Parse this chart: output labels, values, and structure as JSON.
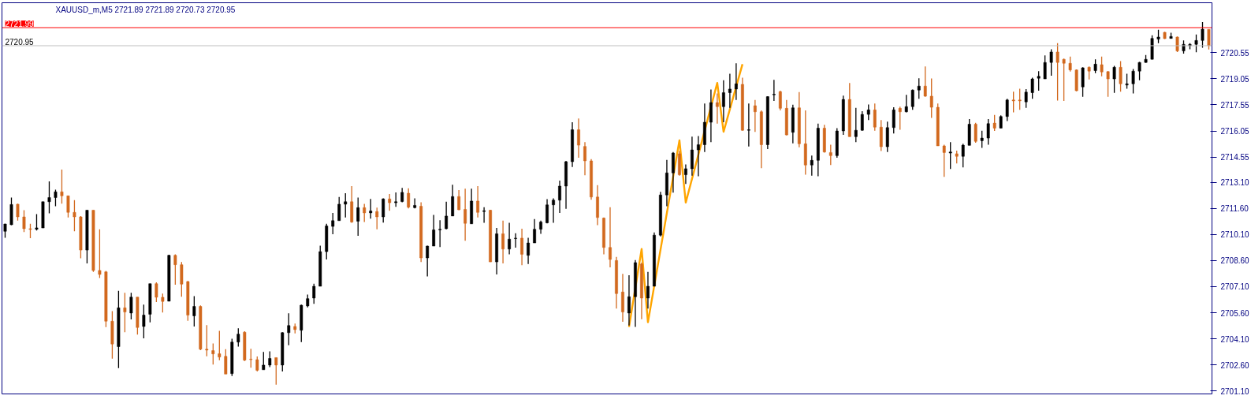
{
  "chart_data": {
    "type": "candlestick",
    "title": "XAUUSD_m,M5  2721.89 2721.89 2720.73 2720.95",
    "categories": [
      null,
      null,
      null,
      null,
      null,
      null,
      null,
      null,
      null,
      null,
      null,
      null,
      null,
      null,
      null,
      null,
      null,
      null,
      null,
      null,
      null,
      null,
      null,
      null,
      null,
      null,
      null,
      null,
      null,
      null,
      null,
      null,
      null,
      null,
      null,
      null,
      null,
      null,
      null,
      null,
      null,
      null,
      null,
      null,
      null,
      null,
      null,
      null,
      null,
      null,
      null,
      null,
      null,
      null,
      null,
      null,
      null,
      null,
      null,
      null,
      null,
      null,
      null,
      null,
      null,
      null,
      null,
      null,
      null,
      null,
      null,
      null,
      null,
      null,
      null,
      null,
      null,
      null,
      null,
      null,
      null,
      null,
      null,
      null,
      null,
      null,
      null,
      null,
      null,
      null,
      null,
      null,
      null,
      null,
      null,
      null,
      null,
      null,
      null,
      null,
      null,
      null,
      null,
      null,
      null,
      null,
      null,
      null,
      null,
      null,
      null,
      null,
      null,
      null,
      null,
      null,
      null,
      null,
      null,
      null,
      null,
      null,
      null,
      null,
      null,
      null,
      null,
      null,
      null,
      null,
      null,
      null,
      null,
      null,
      null,
      null,
      null,
      null,
      null,
      null,
      null,
      null,
      null,
      null,
      null,
      null,
      null,
      null,
      null,
      null,
      null,
      null,
      null,
      null,
      null,
      null,
      null,
      null,
      null,
      null,
      null,
      null,
      null,
      null,
      null,
      null,
      null,
      null,
      null,
      null,
      null,
      null,
      null,
      null,
      null,
      null,
      null,
      null,
      null,
      null,
      null,
      null,
      null,
      null,
      null,
      null,
      null,
      null,
      null,
      null,
      null,
      null
    ],
    "ylim": [
      2700.93,
      2723.42
    ],
    "yticks": [
      2720.55,
      2719.05,
      2717.55,
      2716.05,
      2714.55,
      {
        "value": 2713.1,
        "label": "2713.10"
      },
      {
        "value": 2711.6,
        "label": "2711.60"
      },
      {
        "value": 2710.1,
        "label": "2710.10"
      },
      {
        "value": 2708.6,
        "label": "2708.60"
      },
      {
        "value": 2707.1,
        "label": "2707.10"
      },
      {
        "value": 2705.6,
        "label": "2705.60"
      },
      {
        "value": 2704.1,
        "label": "2704.10"
      },
      {
        "value": 2702.6,
        "label": "2702.60"
      },
      {
        "value": 2701.1,
        "label": "2701.10"
      }
    ],
    "ref_lines": [
      {
        "axis": "y",
        "value": 2721.99,
        "label": "2721.99",
        "color": "#ff0000"
      },
      {
        "axis": "y",
        "value": 2720.95,
        "label": "2720.95",
        "color": "#c0c0c0"
      }
    ],
    "series": [
      {
        "colors": [
          "#000000",
          "#000000",
          "#d2691e",
          "#d2691e",
          "#d2691e",
          "#000000",
          "#000000",
          "#000000",
          "#000000",
          "#d2691e",
          "#d2691e",
          "#d2691e",
          "#d2691e",
          "#000000",
          "#d2691e",
          "#d2691e",
          "#d2691e",
          "#d2691e",
          "#000000",
          "#d2691e",
          "#000000",
          "#d2691e",
          "#000000",
          "#000000",
          "#d2691e",
          "#d2691e",
          "#000000",
          "#d2691e",
          "#d2691e",
          "#d2691e",
          "#000000",
          "#d2691e",
          "#d2691e",
          "#d2691e",
          "#d2691e",
          "#d2691e",
          "#000000",
          "#000000",
          "#d2691e",
          "#d2691e",
          "#d2691e",
          "#000000",
          "#000000",
          "#d2691e",
          "#000000",
          "#000000",
          "#d2691e",
          "#000000",
          "#000000",
          "#000000",
          "#000000",
          "#000000",
          "#000000",
          "#000000",
          "#000000",
          "#d2691e",
          "#000000",
          "#d2691e",
          "#000000",
          "#d2691e",
          "#000000",
          "#d2691e",
          "#000000",
          "#000000",
          "#d2691e",
          "#000000",
          "#d2691e",
          "#000000",
          "#000000",
          "#000000",
          "#000000",
          "#000000",
          "#d2691e",
          "#d2691e",
          "#000000",
          "#d2691e",
          "#000000",
          "#d2691e",
          "#000000",
          "#d2691e",
          "#000000",
          "#000000",
          "#d2691e",
          "#000000",
          "#000000",
          "#000000",
          "#000000",
          "#000000",
          "#000000",
          "#000000",
          "#000000",
          "#d2691e",
          "#d2691e",
          "#d2691e",
          "#d2691e",
          "#d2691e",
          "#d2691e",
          "#d2691e",
          "#d2691e",
          "#000000",
          "#000000",
          "#d2691e",
          "#000000",
          "#000000",
          "#000000",
          "#000000",
          "#000000",
          "#d2691e",
          "#000000",
          "#000000",
          "#000000",
          "#000000",
          "#000000",
          "#d2691e",
          "#000000",
          "#000000",
          "#000000",
          "#d2691e",
          "#000000",
          "#d2691e",
          "#d2691e",
          "#000000",
          "#000000",
          "#d2691e",
          "#d2691e",
          "#000000",
          "#d2691e",
          "#d2691e",
          "#000000",
          "#000000",
          "#d2691e",
          "#d2691e",
          "#000000",
          "#000000",
          "#d2691e",
          "#000000",
          "#000000",
          "#000000",
          "#d2691e",
          "#d2691e",
          "#000000",
          "#000000",
          "#d2691e",
          "#000000",
          "#000000",
          "#000000",
          "#d2691e",
          "#d2691e",
          "#d2691e",
          "#d2691e",
          "#000000",
          "#d2691e",
          "#000000",
          "#000000",
          "#d2691e",
          "#000000",
          "#000000",
          "#d2691e",
          "#000000",
          "#000000",
          "#d2691e",
          "#d2691e",
          "#000000",
          "#000000",
          "#000000",
          "#000000",
          "#000000",
          "#d2691e",
          "#d2691e",
          "#d2691e",
          "#d2691e",
          "#000000",
          "#d2691e",
          "#000000",
          "#d2691e",
          "#d2691e",
          "#000000",
          "#d2691e",
          "#000000",
          "#000000",
          "#000000",
          "#000000",
          "#000000",
          "#000000",
          "#d2691e",
          "#000000",
          "#d2691e",
          "#000000",
          "#000000",
          "#000000",
          "#000000",
          "#d2691e"
        ],
        "ohlc": [
          [
            2710.28,
            2710.71,
            2709.91,
            2710.7
          ],
          [
            2710.66,
            2712.22,
            2710.63,
            2711.82
          ],
          [
            2711.84,
            2711.87,
            2710.89,
            2711.11
          ],
          [
            2711.11,
            2711.49,
            2710.24,
            2710.43
          ],
          [
            2710.43,
            2710.71,
            2709.88,
            2710.39
          ],
          [
            2710.4,
            2711.27,
            2710.33,
            2710.48
          ],
          [
            2710.47,
            2711.98,
            2710.47,
            2711.98
          ],
          [
            2711.98,
            2713.15,
            2711.31,
            2712.22
          ],
          [
            2712.22,
            2712.67,
            2711.72,
            2712.55
          ],
          [
            2712.55,
            2713.83,
            2711.87,
            2712.32
          ],
          [
            2712.32,
            2712.32,
            2711.08,
            2711.37
          ],
          [
            2711.37,
            2712.07,
            2710.28,
            2711.11
          ],
          [
            2711.11,
            2711.16,
            2708.73,
            2709.2
          ],
          [
            2709.2,
            2711.49,
            2708.43,
            2711.49
          ],
          [
            2711.49,
            2711.49,
            2707.95,
            2708.03
          ],
          [
            2708.03,
            2710.39,
            2707.6,
            2707.8
          ],
          [
            2707.95,
            2708.0,
            2704.77,
            2705.11
          ],
          [
            2705.11,
            2705.69,
            2702.96,
            2703.8
          ],
          [
            2703.65,
            2706.86,
            2702.41,
            2705.88
          ],
          [
            2705.88,
            2706.74,
            2704.48,
            2705.64
          ],
          [
            2705.58,
            2706.74,
            2705.22,
            2706.5
          ],
          [
            2706.5,
            2706.5,
            2704.34,
            2704.75
          ],
          [
            2704.81,
            2706.06,
            2704.13,
            2705.46
          ],
          [
            2705.51,
            2707.27,
            2705.04,
            2707.27
          ],
          [
            2707.27,
            2707.35,
            2706.21,
            2706.49
          ],
          [
            2706.49,
            2706.7,
            2705.61,
            2706.25
          ],
          [
            2706.26,
            2708.93,
            2706.26,
            2708.9
          ],
          [
            2708.9,
            2708.96,
            2707.21,
            2708.36
          ],
          [
            2708.36,
            2708.51,
            2706.52,
            2707.24
          ],
          [
            2707.39,
            2707.42,
            2705.13,
            2705.46
          ],
          [
            2705.42,
            2706.55,
            2704.81,
            2705.96
          ],
          [
            2705.96,
            2706.02,
            2703.45,
            2703.5
          ],
          [
            2703.5,
            2704.89,
            2703.09,
            2703.45
          ],
          [
            2703.42,
            2703.83,
            2702.62,
            2703.23
          ],
          [
            2703.24,
            2704.56,
            2702.87,
            2703.05
          ],
          [
            2703.09,
            2703.5,
            2702.07,
            2702.07
          ],
          [
            2702.1,
            2704.1,
            2701.96,
            2703.91
          ],
          [
            2703.91,
            2704.71,
            2703.65,
            2704.37
          ],
          [
            2704.48,
            2704.53,
            2702.82,
            2702.87
          ],
          [
            2702.93,
            2703.53,
            2702.44,
            2702.9
          ],
          [
            2702.9,
            2703.08,
            2702.22,
            2702.29
          ],
          [
            2702.32,
            2703.35,
            2702.32,
            2702.59
          ],
          [
            2702.59,
            2703.38,
            2702.47,
            2702.97
          ],
          [
            2703.02,
            2703.02,
            2701.46,
            2702.59
          ],
          [
            2702.59,
            2704.48,
            2702.22,
            2704.45
          ],
          [
            2704.45,
            2705.57,
            2703.73,
            2704.86
          ],
          [
            2704.81,
            2704.98,
            2704.41,
            2704.63
          ],
          [
            2704.59,
            2706.06,
            2703.91,
            2706.03
          ],
          [
            2705.99,
            2706.64,
            2705.91,
            2706.41
          ],
          [
            2706.44,
            2707.27,
            2706.11,
            2707.12
          ],
          [
            2707.12,
            2709.46,
            2707.12,
            2709.11
          ],
          [
            2709.11,
            2710.71,
            2708.66,
            2710.59
          ],
          [
            2710.56,
            2711.34,
            2710.11,
            2710.89
          ],
          [
            2710.89,
            2712.25,
            2710.89,
            2711.84
          ],
          [
            2711.84,
            2712.47,
            2711.08,
            2711.98
          ],
          [
            2711.98,
            2712.88,
            2710.77,
            2710.81
          ],
          [
            2710.86,
            2712.22,
            2710.02,
            2711.64
          ],
          [
            2711.64,
            2711.86,
            2710.81,
            2711.34
          ],
          [
            2711.34,
            2712.14,
            2711.01,
            2711.45
          ],
          [
            2711.42,
            2711.64,
            2710.4,
            2711.11
          ],
          [
            2711.11,
            2712.17,
            2710.78,
            2712.14
          ],
          [
            2712.14,
            2712.43,
            2711.46,
            2711.92
          ],
          [
            2711.92,
            2712.52,
            2711.69,
            2711.98
          ],
          [
            2711.99,
            2712.78,
            2711.95,
            2712.52
          ],
          [
            2712.47,
            2712.75,
            2711.6,
            2711.67
          ],
          [
            2711.64,
            2712.17,
            2711.6,
            2711.77
          ],
          [
            2711.72,
            2711.95,
            2708.51,
            2708.75
          ],
          [
            2708.75,
            2709.46,
            2707.69,
            2709.43
          ],
          [
            2709.43,
            2711.22,
            2709.43,
            2710.36
          ],
          [
            2710.36,
            2710.92,
            2709.38,
            2710.4
          ],
          [
            2710.43,
            2711.98,
            2710.4,
            2711.16
          ],
          [
            2711.16,
            2712.96,
            2711.16,
            2712.28
          ],
          [
            2712.28,
            2712.65,
            2711.49,
            2711.52
          ],
          [
            2711.54,
            2712.73,
            2709.74,
            2710.74
          ],
          [
            2710.71,
            2712.73,
            2710.7,
            2712.02
          ],
          [
            2712.02,
            2712.88,
            2711.08,
            2711.37
          ],
          [
            2711.42,
            2711.67,
            2710.77,
            2711.46
          ],
          [
            2711.49,
            2711.52,
            2708.51,
            2708.52
          ],
          [
            2708.52,
            2710.47,
            2707.8,
            2710.14
          ],
          [
            2710.14,
            2710.89,
            2708.43,
            2709.26
          ],
          [
            2709.26,
            2710.77,
            2708.96,
            2709.83
          ],
          [
            2709.86,
            2710.17,
            2709.34,
            2709.89
          ],
          [
            2709.89,
            2710.43,
            2708.33,
            2708.96
          ],
          [
            2708.9,
            2709.91,
            2708.4,
            2709.61
          ],
          [
            2709.61,
            2710.99,
            2709.61,
            2710.4
          ],
          [
            2710.4,
            2710.89,
            2710.14,
            2710.81
          ],
          [
            2710.77,
            2712.13,
            2710.74,
            2711.8
          ],
          [
            2711.8,
            2712.17,
            2710.77,
            2712.07
          ],
          [
            2712.07,
            2713.2,
            2711.34,
            2712.88
          ],
          [
            2712.88,
            2714.33,
            2711.57,
            2714.28
          ],
          [
            2714.28,
            2716.55,
            2713.98,
            2716.12
          ],
          [
            2716.12,
            2716.77,
            2714.51,
            2715.23
          ],
          [
            2715.16,
            2715.41,
            2713.5,
            2714.33
          ],
          [
            2714.33,
            2714.43,
            2712.1,
            2712.25
          ],
          [
            2712.25,
            2712.93,
            2710.63,
            2711.07
          ],
          [
            2711.04,
            2711.07,
            2708.96,
            2709.35
          ],
          [
            2709.35,
            2711.67,
            2708.21,
            2708.66
          ],
          [
            2708.6,
            2708.81,
            2705.84,
            2706.7
          ],
          [
            2706.79,
            2707.83,
            2705.08,
            2705.64
          ],
          [
            2705.58,
            2707.75,
            2704.86,
            2706.52
          ],
          [
            2706.52,
            2708.63,
            2704.78,
            2708.48
          ],
          [
            2708.4,
            2708.48,
            2705.23,
            2706.44
          ],
          [
            2706.44,
            2707.95,
            2705.84,
            2707.12
          ],
          [
            2707.12,
            2710.21,
            2707.12,
            2710.06
          ],
          [
            2710.06,
            2712.55,
            2709.99,
            2712.37
          ],
          [
            2712.37,
            2714.39,
            2711.72,
            2713.64
          ],
          [
            2713.64,
            2714.84,
            2712.5,
            2714.78
          ],
          [
            2714.74,
            2714.89,
            2713.48,
            2713.53
          ],
          [
            2713.53,
            2714.13,
            2713.0,
            2713.88
          ],
          [
            2713.88,
            2715.72,
            2713.48,
            2714.96
          ],
          [
            2714.96,
            2715.76,
            2713.45,
            2715.26
          ],
          [
            2715.26,
            2717.63,
            2714.84,
            2716.55
          ],
          [
            2716.55,
            2718.43,
            2715.41,
            2717.68
          ],
          [
            2717.68,
            2718.21,
            2716.47,
            2717.45
          ],
          [
            2717.45,
            2718.96,
            2716.55,
            2718.25
          ],
          [
            2718.25,
            2719.34,
            2717.38,
            2718.46
          ],
          [
            2718.46,
            2719.94,
            2717.83,
            2718.76
          ],
          [
            2718.73,
            2719.11,
            2716.06,
            2716.09
          ],
          [
            2716.09,
            2717.63,
            2715.16,
            2716.12
          ],
          [
            2717.5,
            2717.83,
            2715.99,
            2717.15
          ],
          [
            2717.15,
            2717.23,
            2713.91,
            2715.26
          ],
          [
            2715.26,
            2718.05,
            2715.01,
            2718.02
          ],
          [
            2718.13,
            2718.99,
            2717.78,
            2718.16
          ],
          [
            2718.31,
            2718.36,
            2717.23,
            2717.35
          ],
          [
            2717.35,
            2717.83,
            2715.79,
            2715.82
          ],
          [
            2715.97,
            2717.56,
            2715.34,
            2717.38
          ],
          [
            2717.38,
            2718.28,
            2715.11,
            2715.31
          ],
          [
            2715.31,
            2717.23,
            2713.53,
            2714.09
          ],
          [
            2714.09,
            2714.63,
            2713.48,
            2714.36
          ],
          [
            2714.36,
            2716.47,
            2713.45,
            2716.21
          ],
          [
            2716.21,
            2716.4,
            2714.81,
            2714.84
          ],
          [
            2714.81,
            2715.26,
            2714.09,
            2714.63
          ],
          [
            2714.63,
            2716.21,
            2714.51,
            2716.05
          ],
          [
            2716.05,
            2718.08,
            2715.82,
            2717.86
          ],
          [
            2717.86,
            2718.81,
            2715.72,
            2715.72
          ],
          [
            2715.72,
            2717.38,
            2715.41,
            2716.09
          ],
          [
            2716.09,
            2717.18,
            2716.06,
            2717.0
          ],
          [
            2717.0,
            2717.57,
            2716.67,
            2717.26
          ],
          [
            2717.26,
            2717.63,
            2716.06,
            2716.27
          ],
          [
            2716.27,
            2716.67,
            2714.89,
            2715.14
          ],
          [
            2715.14,
            2716.59,
            2714.84,
            2716.24
          ],
          [
            2716.24,
            2717.41,
            2715.9,
            2717.26
          ],
          [
            2717.35,
            2717.45,
            2716.12,
            2717.15
          ],
          [
            2717.15,
            2718.13,
            2717.12,
            2717.45
          ],
          [
            2717.45,
            2718.43,
            2717.26,
            2718.4
          ],
          [
            2718.4,
            2719.08,
            2717.9,
            2718.63
          ],
          [
            2718.63,
            2719.76,
            2718.01,
            2718.05
          ],
          [
            2718.05,
            2719.07,
            2716.8,
            2717.41
          ],
          [
            2717.41,
            2717.63,
            2715.19,
            2715.19
          ],
          [
            2715.19,
            2715.26,
            2713.41,
            2714.81
          ],
          [
            2714.78,
            2715.41,
            2713.86,
            2714.84
          ],
          [
            2714.74,
            2714.92,
            2714.18,
            2714.59
          ],
          [
            2714.59,
            2715.31,
            2713.95,
            2715.23
          ],
          [
            2715.22,
            2716.73,
            2715.22,
            2716.44
          ],
          [
            2716.44,
            2716.52,
            2715.37,
            2715.45
          ],
          [
            2715.49,
            2716.06,
            2715.08,
            2715.64
          ],
          [
            2715.64,
            2716.73,
            2715.26,
            2716.47
          ],
          [
            2716.5,
            2716.97,
            2716.05,
            2716.21
          ],
          [
            2716.21,
            2716.95,
            2716.21,
            2716.88
          ],
          [
            2716.88,
            2717.9,
            2716.62,
            2717.83
          ],
          [
            2717.83,
            2718.31,
            2717.12,
            2717.78
          ],
          [
            2717.83,
            2718.48,
            2717.26,
            2717.78
          ],
          [
            2717.72,
            2718.46,
            2717.38,
            2718.28
          ],
          [
            2718.25,
            2719.11,
            2717.9,
            2719.04
          ],
          [
            2719.08,
            2719.49,
            2718.36,
            2719.19
          ],
          [
            2719.04,
            2720.39,
            2719.04,
            2719.99
          ],
          [
            2719.99,
            2720.74,
            2719.23,
            2720.59
          ],
          [
            2720.59,
            2721.1,
            2717.8,
            2719.99
          ],
          [
            2720.17,
            2720.21,
            2717.78,
            2719.94
          ],
          [
            2719.94,
            2720.32,
            2719.46,
            2719.56
          ],
          [
            2719.56,
            2719.59,
            2718.33,
            2718.36
          ],
          [
            2718.58,
            2719.71,
            2718.01,
            2719.68
          ],
          [
            2719.71,
            2719.76,
            2719.01,
            2719.49
          ],
          [
            2719.52,
            2720.17,
            2719.37,
            2719.89
          ],
          [
            2719.86,
            2720.32,
            2719.19,
            2719.44
          ],
          [
            2719.46,
            2719.49,
            2718.01,
            2719.04
          ],
          [
            2719.04,
            2719.79,
            2718.24,
            2719.71
          ],
          [
            2719.71,
            2720.06,
            2718.31,
            2718.76
          ],
          [
            2718.69,
            2719.34,
            2718.48,
            2718.76
          ],
          [
            2718.76,
            2719.61,
            2718.21,
            2719.49
          ],
          [
            2719.49,
            2720.02,
            2718.96,
            2719.99
          ],
          [
            2719.99,
            2720.42,
            2719.97,
            2720.17
          ],
          [
            2720.17,
            2721.55,
            2720.17,
            2721.37
          ],
          [
            2721.33,
            2721.87,
            2721.1,
            2721.45
          ],
          [
            2721.72,
            2721.75,
            2721.33,
            2721.36
          ],
          [
            2721.37,
            2721.7,
            2721.37,
            2721.48
          ],
          [
            2721.45,
            2721.48,
            2720.59,
            2720.65
          ],
          [
            2720.65,
            2721.25,
            2720.5,
            2721.03
          ],
          [
            2720.95,
            2721.1,
            2720.74,
            2721.03
          ],
          [
            2721.03,
            2721.6,
            2720.57,
            2721.25
          ],
          [
            2721.25,
            2722.31,
            2720.84,
            2721.9
          ],
          [
            2721.89,
            2721.89,
            2720.73,
            2720.95
          ]
        ]
      },
      {
        "type": "line",
        "color": "#ffa500",
        "values": [
          null,
          null,
          null,
          null,
          null,
          null,
          null,
          null,
          null,
          null,
          null,
          null,
          null,
          null,
          null,
          null,
          null,
          null,
          null,
          null,
          null,
          null,
          null,
          null,
          null,
          null,
          null,
          null,
          null,
          null,
          null,
          null,
          null,
          null,
          null,
          null,
          null,
          null,
          null,
          null,
          null,
          null,
          null,
          null,
          null,
          null,
          null,
          null,
          null,
          null,
          null,
          null,
          null,
          null,
          null,
          null,
          null,
          null,
          null,
          null,
          null,
          null,
          null,
          null,
          null,
          null,
          null,
          null,
          null,
          null,
          null,
          null,
          null,
          null,
          null,
          null,
          null,
          null,
          null,
          null,
          null,
          null,
          null,
          null,
          null,
          null,
          null,
          null,
          null,
          null,
          null,
          null,
          null,
          null,
          null,
          null,
          null,
          null,
          null,
          2704.78,
          null,
          2709.26,
          2705.05,
          null,
          null,
          null,
          null,
          2715.51,
          2711.93,
          null,
          null,
          null,
          null,
          2718.81,
          2716.0,
          null,
          null,
          2719.89,
          null,
          null,
          null,
          null,
          null,
          null,
          null,
          null,
          null,
          null,
          null,
          null,
          null,
          null,
          null,
          null,
          null,
          null,
          null,
          null,
          null,
          null,
          null,
          null,
          null,
          null,
          null,
          null,
          null,
          null,
          null,
          null,
          null,
          null,
          null,
          null,
          null,
          null,
          null,
          null,
          null,
          null,
          null,
          null,
          null,
          null,
          null,
          null,
          null,
          null,
          null,
          null,
          null,
          null,
          null,
          null,
          null,
          null,
          null,
          null,
          null,
          null,
          null,
          null,
          null,
          null,
          null,
          null,
          null,
          null,
          null,
          null,
          null,
          null
        ]
      }
    ]
  }
}
